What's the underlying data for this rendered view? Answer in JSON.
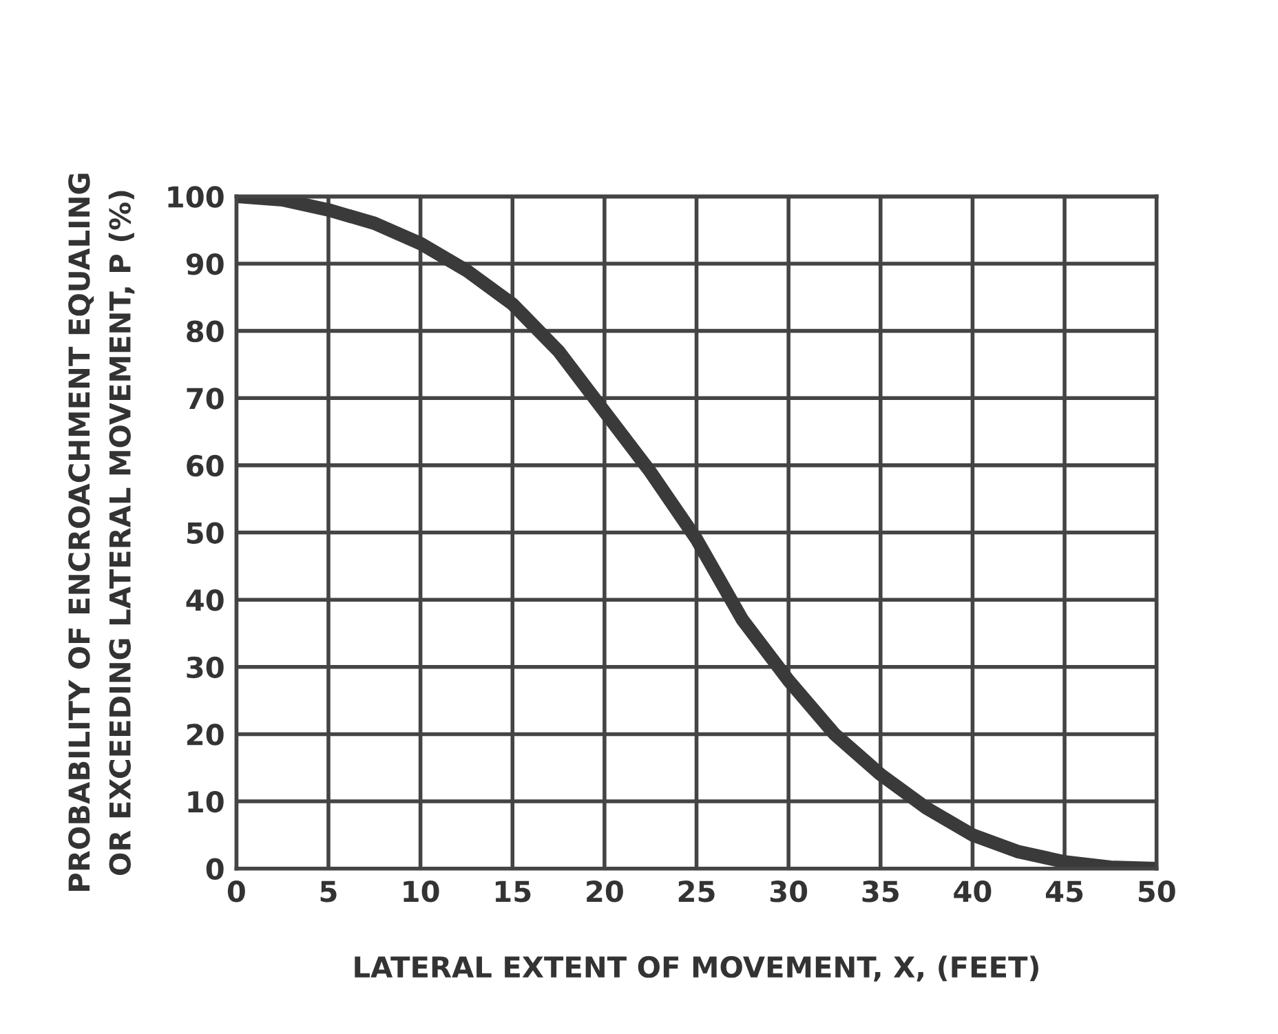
{
  "chart_data": {
    "type": "line",
    "xlabel": "LATERAL EXTENT OF MOVEMENT, X, (FEET)",
    "ylabel": "PROBABILITY OF ENCROACHMENT EQUALING\nOR EXCEEDING LATERAL MOVEMENT, P (%)",
    "x": [
      0,
      2.5,
      5,
      7.5,
      10,
      12.5,
      15,
      17.5,
      20,
      22.5,
      25,
      27.5,
      30,
      32.5,
      35,
      37.5,
      40,
      42.5,
      45,
      47.5,
      50
    ],
    "series": [
      {
        "color": "#3a3a3a",
        "values": [
          100,
          99.5,
          98,
          96,
          93,
          89,
          84,
          77,
          68,
          59,
          49,
          37,
          28,
          20,
          14,
          9,
          5,
          2.5,
          1,
          0.2,
          0
        ]
      }
    ],
    "xlim": [
      0,
      50
    ],
    "ylim": [
      0,
      100
    ],
    "xticks": [
      0,
      5,
      10,
      15,
      20,
      25,
      30,
      35,
      40,
      45,
      50
    ],
    "yticks": [
      0,
      10,
      20,
      30,
      40,
      50,
      60,
      70,
      80,
      90,
      100
    ],
    "grid": true,
    "line_style": "solid",
    "marker": "none"
  }
}
